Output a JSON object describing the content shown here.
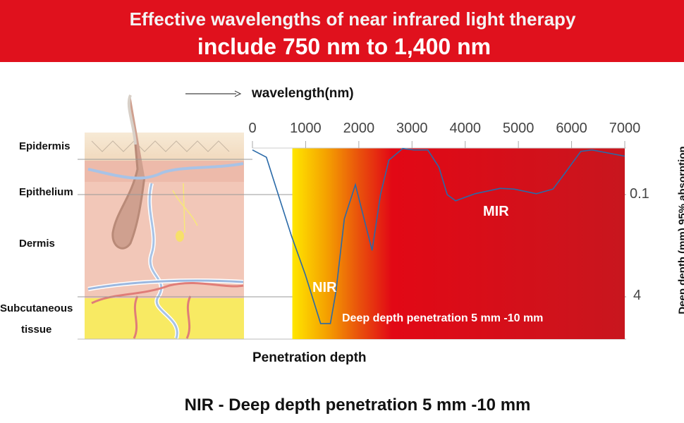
{
  "header": {
    "line1": "Effective wavelengths of near infrared light therapy",
    "line2": "include 750 nm to 1,400 nm",
    "color": "#e0111d"
  },
  "skin_layers": {
    "epidermis": "Epidermis",
    "epithelium": "Epithelium",
    "dermis": "Dermis",
    "subcutaneous_1": "Subcutaneous",
    "subcutaneous_2": "tissue"
  },
  "footer": "NIR - Deep depth penetration 5 mm -10 mm",
  "chart_data": {
    "type": "line",
    "title": "",
    "xlabel": "wavelength(nm)",
    "ylabel": "Deep depth (mm) 95% absorption",
    "bottom_label": "Penetration depth",
    "x_axis_position": "top",
    "y_axis_position": "right",
    "xlim": [
      0,
      7000
    ],
    "x_ticks": [
      "0",
      "1000",
      "2000",
      "3000",
      "4000",
      "5000",
      "6000",
      "7000"
    ],
    "y_scale": "log",
    "y_inverted": true,
    "y_ticks": [
      "0.1",
      "4"
    ],
    "grid": true,
    "shaded_band": {
      "from_nm": 750,
      "to_nm": 7000,
      "gradient": [
        "#ffe600",
        "#f39a00",
        "#e8500a",
        "#e0081a",
        "#c8161e"
      ]
    },
    "annotations": {
      "nir": "NIR",
      "mir": "MIR",
      "penetration": "Deep depth penetration 5 mm -10 mm"
    },
    "line_color": "#2a6aa8",
    "series": [
      {
        "x": [
          0,
          262,
          419,
          732,
          994,
          1282,
          1465,
          1570,
          1727,
          1936,
          2250,
          2407,
          2564,
          2825,
          3035,
          3296,
          3505,
          3662,
          3819,
          4186,
          4656,
          4918,
          5337,
          5651,
          5860,
          6174,
          6383,
          7000
        ],
        "y": [
          0.02,
          0.026,
          0.067,
          0.44,
          1.8,
          10.5,
          10.5,
          3.35,
          0.24,
          0.07,
          0.75,
          0.1,
          0.029,
          0.019,
          0.02,
          0.02,
          0.037,
          0.1,
          0.125,
          0.097,
          0.08,
          0.082,
          0.097,
          0.082,
          0.048,
          0.021,
          0.02,
          0.025
        ]
      }
    ]
  }
}
